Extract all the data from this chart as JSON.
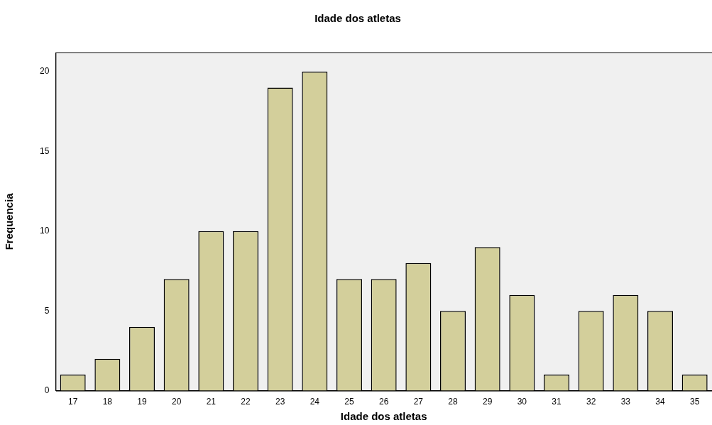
{
  "chart_data": {
    "type": "bar",
    "title": "Idade dos atletas",
    "xlabel": "Idade dos atletas",
    "ylabel": "Frequencia",
    "categories": [
      "17",
      "18",
      "19",
      "20",
      "21",
      "22",
      "23",
      "24",
      "25",
      "26",
      "27",
      "28",
      "29",
      "30",
      "31",
      "32",
      "33",
      "34",
      "35"
    ],
    "values": [
      1,
      2,
      4,
      7,
      10,
      10,
      19,
      20,
      7,
      7,
      8,
      5,
      9,
      6,
      1,
      5,
      6,
      5,
      1
    ],
    "color": "#d3cf9b",
    "ylim": [
      0,
      21.2
    ],
    "yticks": [
      0,
      5,
      10,
      15,
      20
    ],
    "grid": false,
    "legend": false
  }
}
